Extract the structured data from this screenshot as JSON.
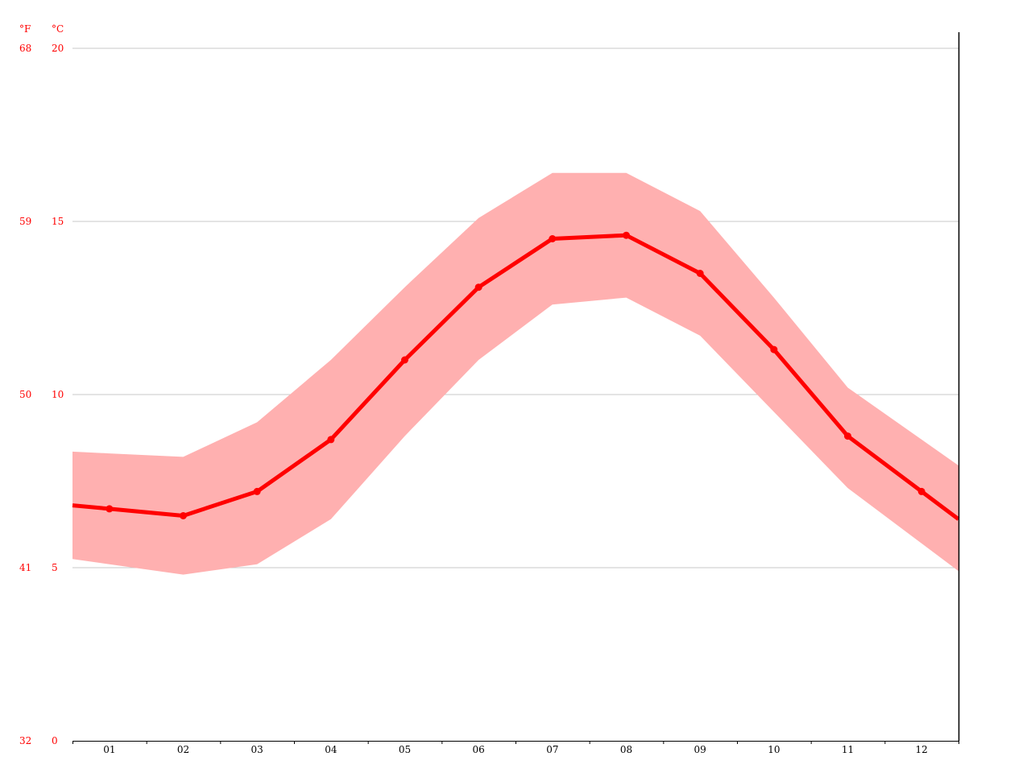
{
  "chart_data": {
    "type": "line",
    "categories": [
      "01",
      "02",
      "03",
      "04",
      "05",
      "06",
      "07",
      "08",
      "09",
      "10",
      "11",
      "12"
    ],
    "series": [
      {
        "values": [
          6.7,
          6.5,
          7.2,
          8.7,
          11.0,
          13.1,
          14.5,
          14.6,
          13.5,
          11.3,
          8.8,
          7.2
        ]
      }
    ],
    "band": {
      "upper": [
        8.3,
        8.2,
        9.2,
        11.0,
        13.1,
        15.1,
        16.4,
        16.4,
        15.3,
        12.8,
        10.2,
        8.7
      ],
      "lower": [
        5.1,
        4.8,
        5.1,
        6.4,
        8.8,
        11.0,
        12.6,
        12.8,
        11.7,
        9.5,
        7.3,
        5.7
      ]
    },
    "y_left_unit": "°F",
    "y_right_unit": "°C",
    "y_ticks_f": [
      "32",
      "41",
      "50",
      "59",
      "68"
    ],
    "y_ticks_c": [
      "0",
      "5",
      "10",
      "15",
      "20"
    ],
    "ylim": [
      0,
      20
    ],
    "grid": true,
    "colors": {
      "line": "#ff0000",
      "band": "#ffb0b0",
      "grid": "#c8c8c8",
      "axis": "#000000",
      "tick_label": "#ff0000"
    }
  }
}
